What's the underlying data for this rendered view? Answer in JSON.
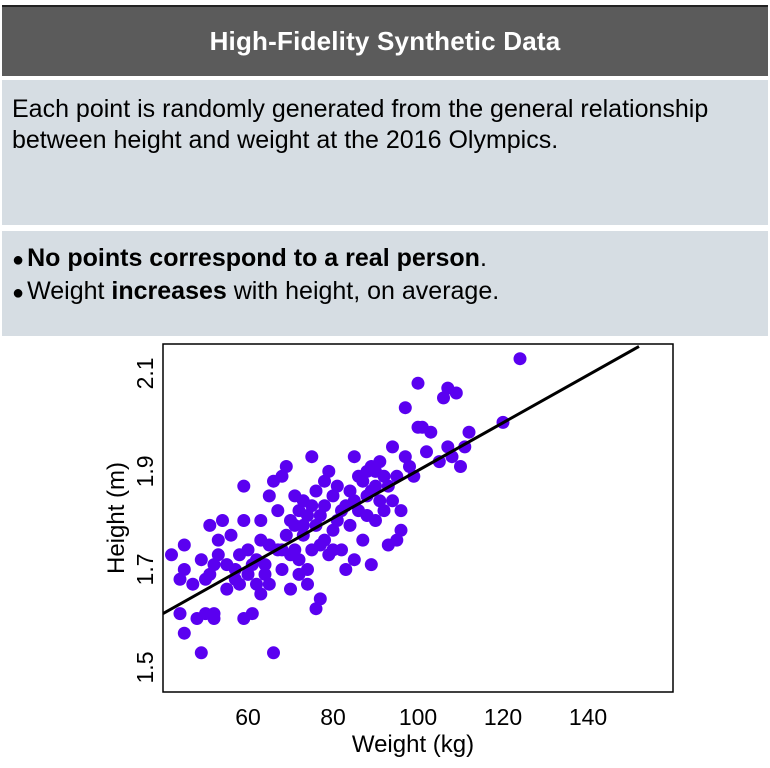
{
  "header": {
    "title": "High-Fidelity Synthetic Data"
  },
  "description": "Each point is randomly generated from the general relationship between height and weight at the 2016 Olympics.",
  "bullets": [
    {
      "bold": "No points correspond to a real person",
      "after": "."
    },
    {
      "before": "Weight ",
      "bold": "increases",
      "after": " with height, on average."
    }
  ],
  "colors": {
    "points": "#5a00f0",
    "regression": "#000000",
    "panel": "#d6dde3",
    "title_bar": "#5b5b5b"
  },
  "chart_data": {
    "type": "scatter",
    "xlabel": "Weight (kg)",
    "ylabel": "Height (m)",
    "xlim": [
      40,
      160
    ],
    "ylim": [
      1.45,
      2.16
    ],
    "xticks": [
      60,
      80,
      100,
      120,
      140
    ],
    "yticks": [
      1.5,
      1.7,
      1.9,
      2.1
    ],
    "xtick_labels": [
      "60",
      "80",
      "100",
      "120",
      "140"
    ],
    "ytick_labels": [
      "1.5",
      "1.7",
      "1.9",
      "2.1"
    ],
    "grid": false,
    "trend_line": {
      "x": [
        40,
        152
      ],
      "y": [
        1.61,
        2.155
      ]
    },
    "points": [
      [
        42,
        1.73
      ],
      [
        44,
        1.68
      ],
      [
        44,
        1.61
      ],
      [
        45,
        1.75
      ],
      [
        45,
        1.7
      ],
      [
        45,
        1.57
      ],
      [
        47,
        1.67
      ],
      [
        48,
        1.6
      ],
      [
        49,
        1.53
      ],
      [
        49,
        1.72
      ],
      [
        50,
        1.61
      ],
      [
        50,
        1.68
      ],
      [
        51,
        1.79
      ],
      [
        51,
        1.69
      ],
      [
        52,
        1.71
      ],
      [
        52,
        1.6
      ],
      [
        52,
        1.61
      ],
      [
        53,
        1.73
      ],
      [
        53,
        1.76
      ],
      [
        54,
        1.8
      ],
      [
        55,
        1.71
      ],
      [
        55,
        1.66
      ],
      [
        56,
        1.77
      ],
      [
        57,
        1.7
      ],
      [
        57,
        1.68
      ],
      [
        58,
        1.73
      ],
      [
        58,
        1.67
      ],
      [
        59,
        1.87
      ],
      [
        59,
        1.8
      ],
      [
        59,
        1.6
      ],
      [
        60,
        1.74
      ],
      [
        60,
        1.69
      ],
      [
        61,
        1.71
      ],
      [
        61,
        1.61
      ],
      [
        62,
        1.72
      ],
      [
        62,
        1.67
      ],
      [
        63,
        1.8
      ],
      [
        63,
        1.76
      ],
      [
        63,
        1.65
      ],
      [
        64,
        1.69
      ],
      [
        64,
        1.71
      ],
      [
        65,
        1.85
      ],
      [
        65,
        1.75
      ],
      [
        65,
        1.67
      ],
      [
        66,
        1.88
      ],
      [
        66,
        1.53
      ],
      [
        67,
        1.82
      ],
      [
        67,
        1.74
      ],
      [
        68,
        1.89
      ],
      [
        68,
        1.74
      ],
      [
        68,
        1.7
      ],
      [
        69,
        1.91
      ],
      [
        69,
        1.77
      ],
      [
        70,
        1.8
      ],
      [
        70,
        1.73
      ],
      [
        70,
        1.66
      ],
      [
        71,
        1.85
      ],
      [
        71,
        1.79
      ],
      [
        71,
        1.74
      ],
      [
        72,
        1.82
      ],
      [
        72,
        1.72
      ],
      [
        72,
        1.69
      ],
      [
        73,
        1.84
      ],
      [
        73,
        1.79
      ],
      [
        73,
        1.77
      ],
      [
        74,
        1.81
      ],
      [
        74,
        1.7
      ],
      [
        74,
        1.67
      ],
      [
        75,
        1.93
      ],
      [
        75,
        1.83
      ],
      [
        75,
        1.74
      ],
      [
        76,
        1.86
      ],
      [
        76,
        1.79
      ],
      [
        76,
        1.62
      ],
      [
        77,
        1.81
      ],
      [
        77,
        1.75
      ],
      [
        77,
        1.64
      ],
      [
        78,
        1.88
      ],
      [
        78,
        1.83
      ],
      [
        78,
        1.76
      ],
      [
        79,
        1.9
      ],
      [
        79,
        1.73
      ],
      [
        80,
        1.85
      ],
      [
        80,
        1.78
      ],
      [
        80,
        1.74
      ],
      [
        81,
        1.87
      ],
      [
        81,
        1.8
      ],
      [
        82,
        1.82
      ],
      [
        82,
        1.74
      ],
      [
        83,
        1.83
      ],
      [
        83,
        1.7
      ],
      [
        84,
        1.86
      ],
      [
        84,
        1.79
      ],
      [
        85,
        1.93
      ],
      [
        85,
        1.84
      ],
      [
        85,
        1.72
      ],
      [
        86,
        1.89
      ],
      [
        86,
        1.82
      ],
      [
        87,
        1.88
      ],
      [
        87,
        1.76
      ],
      [
        88,
        1.9
      ],
      [
        88,
        1.85
      ],
      [
        88,
        1.81
      ],
      [
        89,
        1.91
      ],
      [
        89,
        1.86
      ],
      [
        89,
        1.71
      ],
      [
        90,
        1.9
      ],
      [
        90,
        1.87
      ],
      [
        90,
        1.8
      ],
      [
        91,
        1.92
      ],
      [
        91,
        1.84
      ],
      [
        92,
        1.89
      ],
      [
        92,
        1.82
      ],
      [
        93,
        1.87
      ],
      [
        93,
        1.75
      ],
      [
        94,
        1.95
      ],
      [
        94,
        1.84
      ],
      [
        95,
        1.89
      ],
      [
        95,
        1.76
      ],
      [
        96,
        1.82
      ],
      [
        96,
        1.78
      ],
      [
        97,
        2.03
      ],
      [
        97,
        1.93
      ],
      [
        98,
        1.91
      ],
      [
        99,
        1.89
      ],
      [
        100,
        2.08
      ],
      [
        100,
        1.99
      ],
      [
        101,
        1.99
      ],
      [
        102,
        1.94
      ],
      [
        103,
        1.98
      ],
      [
        105,
        1.92
      ],
      [
        106,
        2.05
      ],
      [
        107,
        1.95
      ],
      [
        107,
        2.07
      ],
      [
        108,
        1.93
      ],
      [
        109,
        2.06
      ],
      [
        110,
        1.91
      ],
      [
        111,
        1.95
      ],
      [
        112,
        1.98
      ],
      [
        120,
        2.0
      ],
      [
        124,
        2.13
      ]
    ]
  }
}
